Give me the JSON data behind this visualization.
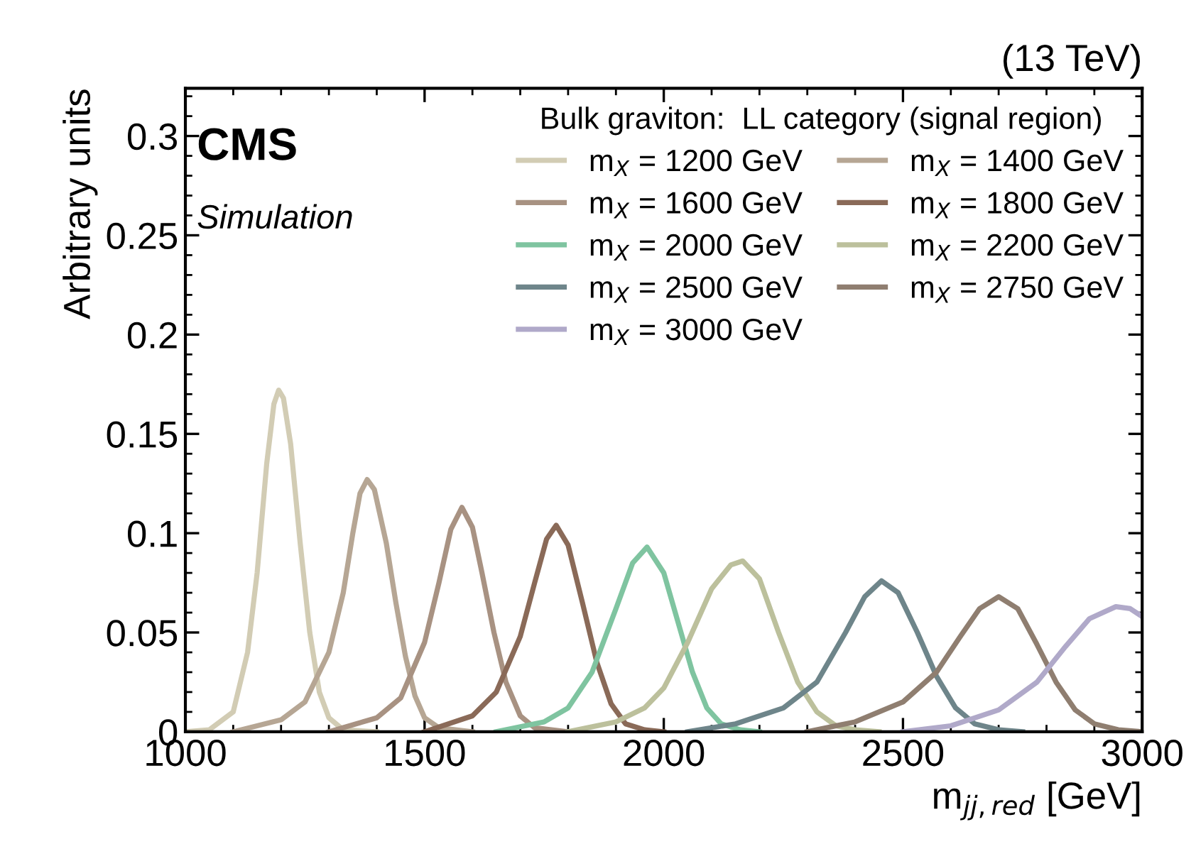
{
  "chart_data": {
    "type": "line",
    "xlabel": "m$_{jj,red}$ [GeV]",
    "ylabel": "Arbitrary units",
    "legend_title": "Bulk graviton:  LL category (signal region)",
    "legend": "top right",
    "grid": false,
    "marker": "none",
    "line_style": "solid",
    "annotations": [
      "CMS",
      "Simulation",
      "(13 TeV)"
    ],
    "xlim": [
      1000,
      3000
    ],
    "xticks": [
      1000,
      1500,
      2000,
      2500,
      3000
    ],
    "ylim": [
      0,
      0.324
    ],
    "yticks": [
      0,
      0.05,
      0.1,
      0.15,
      0.2,
      0.25,
      0.3
    ],
    "series": [
      {
        "name": "m$_{X}$ = 1200 GeV",
        "color": "#d2ccb4",
        "x": [
          1000,
          1050,
          1100,
          1130,
          1150,
          1170,
          1185,
          1195,
          1205,
          1220,
          1240,
          1260,
          1280,
          1300,
          1330,
          1400
        ],
        "values": [
          0,
          0.001,
          0.01,
          0.04,
          0.08,
          0.135,
          0.165,
          0.172,
          0.168,
          0.145,
          0.095,
          0.05,
          0.02,
          0.007,
          0.001,
          0
        ]
      },
      {
        "name": "m$_{X}$ = 1400 GeV",
        "color": "#b6a694",
        "x": [
          1100,
          1200,
          1250,
          1300,
          1330,
          1350,
          1365,
          1380,
          1395,
          1420,
          1440,
          1460,
          1480,
          1500,
          1530,
          1600
        ],
        "values": [
          0,
          0.006,
          0.015,
          0.04,
          0.07,
          0.1,
          0.12,
          0.127,
          0.122,
          0.095,
          0.065,
          0.038,
          0.018,
          0.007,
          0.002,
          0
        ]
      },
      {
        "name": "m$_{X}$ = 1600 GeV",
        "color": "#a89282",
        "x": [
          1300,
          1400,
          1450,
          1500,
          1530,
          1555,
          1578,
          1600,
          1620,
          1645,
          1670,
          1700,
          1730,
          1800
        ],
        "values": [
          0,
          0.007,
          0.017,
          0.045,
          0.075,
          0.102,
          0.113,
          0.103,
          0.08,
          0.05,
          0.025,
          0.008,
          0.002,
          0
        ]
      },
      {
        "name": "m$_{X}$ = 1800 GeV",
        "color": "#8a6a58",
        "x": [
          1500,
          1600,
          1650,
          1700,
          1730,
          1755,
          1775,
          1800,
          1830,
          1860,
          1890,
          1920,
          1960,
          2000
        ],
        "values": [
          0,
          0.008,
          0.02,
          0.048,
          0.075,
          0.097,
          0.104,
          0.094,
          0.065,
          0.035,
          0.014,
          0.004,
          0.001,
          0
        ]
      },
      {
        "name": "m$_{X}$ = 2000 GeV",
        "color": "#7fc4a0",
        "x": [
          1650,
          1750,
          1800,
          1850,
          1900,
          1935,
          1965,
          2000,
          2030,
          2060,
          2090,
          2120,
          2160,
          2200
        ],
        "values": [
          0,
          0.005,
          0.012,
          0.03,
          0.062,
          0.085,
          0.093,
          0.08,
          0.055,
          0.03,
          0.012,
          0.004,
          0.001,
          0
        ]
      },
      {
        "name": "m$_{X}$ = 2200 GeV",
        "color": "#bcc09c",
        "x": [
          1800,
          1900,
          1960,
          2000,
          2050,
          2100,
          2140,
          2165,
          2200,
          2240,
          2280,
          2320,
          2360,
          2400,
          2450
        ],
        "values": [
          0,
          0.005,
          0.012,
          0.022,
          0.045,
          0.072,
          0.084,
          0.086,
          0.077,
          0.05,
          0.025,
          0.01,
          0.003,
          0.001,
          0
        ]
      },
      {
        "name": "m$_{X}$ = 2500 GeV",
        "color": "#6e858a",
        "x": [
          2050,
          2150,
          2250,
          2320,
          2380,
          2420,
          2455,
          2490,
          2530,
          2570,
          2610,
          2650,
          2700,
          2750
        ],
        "values": [
          0,
          0.004,
          0.012,
          0.025,
          0.05,
          0.068,
          0.076,
          0.07,
          0.05,
          0.028,
          0.012,
          0.004,
          0.001,
          0
        ]
      },
      {
        "name": "m$_{X}$ = 2750 GeV",
        "color": "#8f7e70",
        "x": [
          2300,
          2400,
          2500,
          2570,
          2620,
          2660,
          2700,
          2740,
          2780,
          2820,
          2860,
          2900,
          2950,
          3000
        ],
        "values": [
          0,
          0.005,
          0.015,
          0.03,
          0.048,
          0.062,
          0.068,
          0.062,
          0.044,
          0.025,
          0.011,
          0.004,
          0.001,
          0
        ]
      },
      {
        "name": "m$_{X}$ = 3000 GeV",
        "color": "#b0a9c9",
        "x": [
          2500,
          2600,
          2700,
          2780,
          2840,
          2890,
          2945,
          2975,
          3000
        ],
        "values": [
          0,
          0.003,
          0.011,
          0.025,
          0.043,
          0.057,
          0.063,
          0.062,
          0.058
        ]
      }
    ]
  }
}
